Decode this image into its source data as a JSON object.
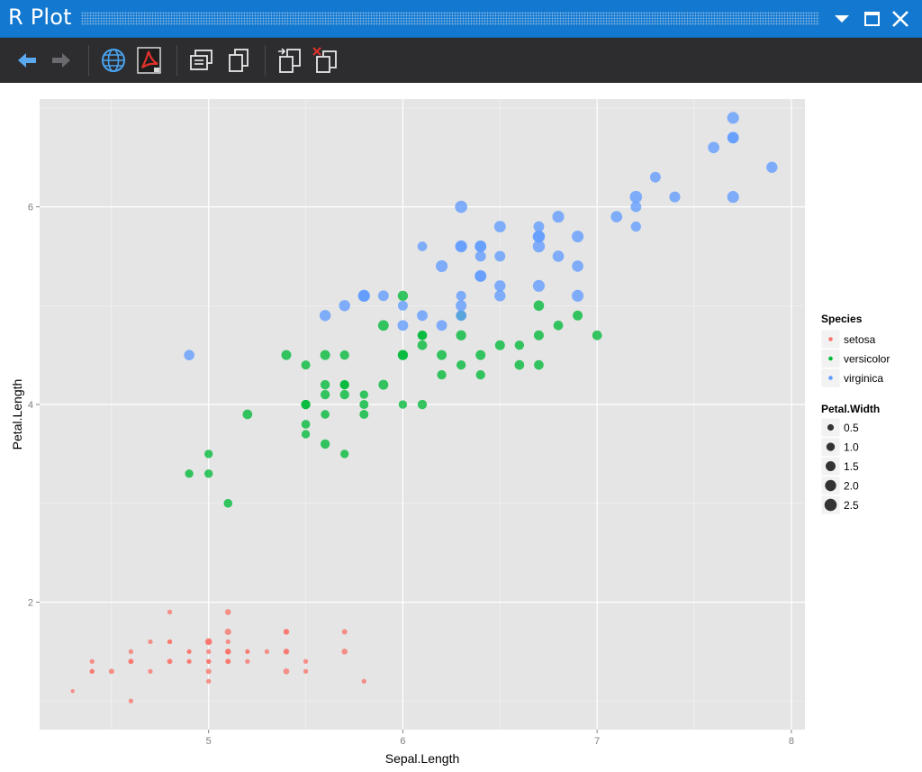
{
  "window": {
    "title": "R Plot"
  },
  "toolbar": {
    "buttons": [
      {
        "name": "back-button",
        "icon": "arrow-left-icon",
        "enabled": true
      },
      {
        "name": "forward-button",
        "icon": "arrow-right-icon",
        "enabled": false
      },
      {
        "name": "browser-button",
        "icon": "globe-icon"
      },
      {
        "name": "export-pdf-button",
        "icon": "pdf-icon"
      },
      {
        "name": "copy-metafile-button",
        "icon": "copy-metafile-icon"
      },
      {
        "name": "copy-bitmap-button",
        "icon": "copy-bitmap-icon"
      },
      {
        "name": "export-plot-button",
        "icon": "export-icon"
      },
      {
        "name": "remove-plot-button",
        "icon": "remove-icon"
      }
    ]
  },
  "colors": {
    "titlebar": "#1378cf",
    "toolbar": "#2d2d30",
    "panel": "#e5e5e5",
    "grid": "#ffffff",
    "setosa": "#f8766d",
    "versicolor": "#00ba38",
    "virginica": "#619cff"
  },
  "chart_data": {
    "type": "scatter",
    "title": "",
    "xlabel": "Sepal.Length",
    "ylabel": "Petal.Length",
    "xlim": [
      4.13,
      8.07
    ],
    "ylim": [
      0.71,
      7.09
    ],
    "xticks": [
      5,
      6,
      7,
      8
    ],
    "yticks": [
      2,
      4,
      6
    ],
    "xtick_labels": [
      "5",
      "6",
      "7",
      "8"
    ],
    "ytick_labels": [
      "2",
      "4",
      "6"
    ],
    "grid": true,
    "legend_placement": "right",
    "color_legend": {
      "title": "Species",
      "entries": [
        "setosa",
        "versicolor",
        "virginica"
      ]
    },
    "size_legend": {
      "title": "Petal.Width",
      "entries": [
        {
          "label": "0.5",
          "value": 0.5
        },
        {
          "label": "1.0",
          "value": 1.0
        },
        {
          "label": "1.5",
          "value": 1.5
        },
        {
          "label": "2.0",
          "value": 2.0
        },
        {
          "label": "2.5",
          "value": 2.5
        }
      ]
    },
    "series": [
      {
        "name": "setosa",
        "points": [
          [
            5.1,
            1.4,
            0.2
          ],
          [
            4.9,
            1.4,
            0.2
          ],
          [
            4.7,
            1.3,
            0.2
          ],
          [
            4.6,
            1.5,
            0.2
          ],
          [
            5.0,
            1.4,
            0.2
          ],
          [
            5.4,
            1.7,
            0.4
          ],
          [
            4.6,
            1.4,
            0.3
          ],
          [
            5.0,
            1.5,
            0.2
          ],
          [
            4.4,
            1.4,
            0.2
          ],
          [
            4.9,
            1.5,
            0.1
          ],
          [
            5.4,
            1.5,
            0.2
          ],
          [
            4.8,
            1.6,
            0.2
          ],
          [
            4.8,
            1.4,
            0.1
          ],
          [
            4.3,
            1.1,
            0.1
          ],
          [
            5.8,
            1.2,
            0.2
          ],
          [
            5.7,
            1.5,
            0.4
          ],
          [
            5.4,
            1.3,
            0.4
          ],
          [
            5.1,
            1.4,
            0.3
          ],
          [
            5.7,
            1.7,
            0.3
          ],
          [
            5.1,
            1.5,
            0.3
          ],
          [
            5.4,
            1.7,
            0.2
          ],
          [
            5.1,
            1.5,
            0.4
          ],
          [
            4.6,
            1.0,
            0.2
          ],
          [
            5.1,
            1.7,
            0.5
          ],
          [
            4.8,
            1.9,
            0.2
          ],
          [
            5.0,
            1.6,
            0.2
          ],
          [
            5.0,
            1.6,
            0.4
          ],
          [
            5.2,
            1.5,
            0.2
          ],
          [
            5.2,
            1.4,
            0.2
          ],
          [
            4.7,
            1.6,
            0.2
          ],
          [
            4.8,
            1.6,
            0.2
          ],
          [
            5.4,
            1.5,
            0.4
          ],
          [
            5.2,
            1.5,
            0.1
          ],
          [
            5.5,
            1.4,
            0.2
          ],
          [
            4.9,
            1.5,
            0.2
          ],
          [
            5.0,
            1.2,
            0.2
          ],
          [
            5.5,
            1.3,
            0.2
          ],
          [
            4.9,
            1.4,
            0.1
          ],
          [
            4.4,
            1.3,
            0.2
          ],
          [
            5.1,
            1.5,
            0.2
          ],
          [
            5.0,
            1.3,
            0.3
          ],
          [
            4.5,
            1.3,
            0.3
          ],
          [
            4.4,
            1.3,
            0.2
          ],
          [
            5.0,
            1.6,
            0.6
          ],
          [
            5.1,
            1.9,
            0.4
          ],
          [
            4.8,
            1.4,
            0.3
          ],
          [
            5.1,
            1.6,
            0.2
          ],
          [
            4.6,
            1.4,
            0.2
          ],
          [
            5.3,
            1.5,
            0.2
          ],
          [
            5.0,
            1.4,
            0.2
          ]
        ]
      },
      {
        "name": "versicolor",
        "points": [
          [
            7.0,
            4.7,
            1.4
          ],
          [
            6.4,
            4.5,
            1.5
          ],
          [
            6.9,
            4.9,
            1.5
          ],
          [
            5.5,
            4.0,
            1.3
          ],
          [
            6.5,
            4.6,
            1.5
          ],
          [
            5.7,
            4.5,
            1.3
          ],
          [
            6.3,
            4.7,
            1.6
          ],
          [
            4.9,
            3.3,
            1.0
          ],
          [
            6.6,
            4.6,
            1.3
          ],
          [
            5.2,
            3.9,
            1.4
          ],
          [
            5.0,
            3.5,
            1.0
          ],
          [
            5.9,
            4.2,
            1.5
          ],
          [
            6.0,
            4.0,
            1.0
          ],
          [
            6.1,
            4.7,
            1.4
          ],
          [
            5.6,
            3.6,
            1.3
          ],
          [
            6.7,
            4.4,
            1.4
          ],
          [
            5.6,
            4.5,
            1.5
          ],
          [
            5.8,
            4.1,
            1.0
          ],
          [
            6.2,
            4.5,
            1.5
          ],
          [
            5.6,
            3.9,
            1.1
          ],
          [
            5.9,
            4.8,
            1.8
          ],
          [
            6.1,
            4.0,
            1.3
          ],
          [
            6.3,
            4.9,
            1.5
          ],
          [
            6.1,
            4.7,
            1.2
          ],
          [
            6.4,
            4.3,
            1.3
          ],
          [
            6.6,
            4.4,
            1.4
          ],
          [
            6.8,
            4.8,
            1.4
          ],
          [
            6.7,
            5.0,
            1.7
          ],
          [
            6.0,
            4.5,
            1.5
          ],
          [
            5.7,
            3.5,
            1.0
          ],
          [
            5.5,
            3.8,
            1.1
          ],
          [
            5.5,
            3.7,
            1.0
          ],
          [
            5.8,
            3.9,
            1.2
          ],
          [
            6.0,
            5.1,
            1.6
          ],
          [
            5.4,
            4.5,
            1.5
          ],
          [
            6.0,
            4.5,
            1.6
          ],
          [
            6.7,
            4.7,
            1.5
          ],
          [
            6.3,
            4.4,
            1.3
          ],
          [
            5.6,
            4.1,
            1.3
          ],
          [
            5.5,
            4.0,
            1.3
          ],
          [
            5.5,
            4.4,
            1.2
          ],
          [
            6.1,
            4.6,
            1.4
          ],
          [
            5.8,
            4.0,
            1.2
          ],
          [
            5.0,
            3.3,
            1.0
          ],
          [
            5.6,
            4.2,
            1.3
          ],
          [
            5.7,
            4.2,
            1.2
          ],
          [
            5.7,
            4.2,
            1.3
          ],
          [
            6.2,
            4.3,
            1.3
          ],
          [
            5.1,
            3.0,
            1.1
          ],
          [
            5.7,
            4.1,
            1.3
          ]
        ]
      },
      {
        "name": "virginica",
        "points": [
          [
            6.3,
            6.0,
            2.5
          ],
          [
            5.8,
            5.1,
            1.9
          ],
          [
            7.1,
            5.9,
            2.1
          ],
          [
            6.3,
            5.6,
            1.8
          ],
          [
            6.5,
            5.8,
            2.2
          ],
          [
            7.6,
            6.6,
            2.1
          ],
          [
            4.9,
            4.5,
            1.7
          ],
          [
            7.3,
            6.3,
            1.8
          ],
          [
            6.7,
            5.8,
            1.8
          ],
          [
            7.2,
            6.1,
            2.5
          ],
          [
            6.5,
            5.1,
            2.0
          ],
          [
            6.4,
            5.3,
            1.9
          ],
          [
            6.8,
            5.5,
            2.1
          ],
          [
            5.7,
            5.0,
            2.0
          ],
          [
            5.8,
            5.1,
            2.4
          ],
          [
            6.4,
            5.3,
            2.3
          ],
          [
            6.5,
            5.5,
            1.8
          ],
          [
            7.7,
            6.7,
            2.2
          ],
          [
            7.7,
            6.9,
            2.3
          ],
          [
            6.0,
            5.0,
            1.5
          ],
          [
            6.9,
            5.7,
            2.3
          ],
          [
            5.6,
            4.9,
            2.0
          ],
          [
            7.7,
            6.7,
            2.0
          ],
          [
            6.3,
            4.9,
            1.8
          ],
          [
            6.7,
            5.7,
            2.1
          ],
          [
            7.2,
            6.0,
            1.8
          ],
          [
            6.2,
            4.8,
            1.8
          ],
          [
            6.1,
            4.9,
            1.8
          ],
          [
            6.4,
            5.6,
            2.1
          ],
          [
            7.2,
            5.8,
            1.6
          ],
          [
            7.4,
            6.1,
            1.9
          ],
          [
            7.9,
            6.4,
            2.0
          ],
          [
            6.4,
            5.6,
            2.2
          ],
          [
            6.3,
            5.1,
            1.5
          ],
          [
            6.1,
            5.6,
            1.4
          ],
          [
            7.7,
            6.1,
            2.3
          ],
          [
            6.3,
            5.6,
            2.4
          ],
          [
            6.4,
            5.5,
            1.8
          ],
          [
            6.0,
            4.8,
            1.8
          ],
          [
            6.9,
            5.4,
            2.1
          ],
          [
            6.7,
            5.6,
            2.4
          ],
          [
            6.9,
            5.1,
            2.3
          ],
          [
            5.8,
            5.1,
            1.9
          ],
          [
            6.8,
            5.9,
            2.3
          ],
          [
            6.7,
            5.7,
            2.5
          ],
          [
            6.7,
            5.2,
            2.3
          ],
          [
            6.3,
            5.0,
            1.9
          ],
          [
            6.5,
            5.2,
            2.0
          ],
          [
            6.2,
            5.4,
            2.3
          ],
          [
            5.9,
            5.1,
            1.8
          ]
        ]
      }
    ]
  }
}
